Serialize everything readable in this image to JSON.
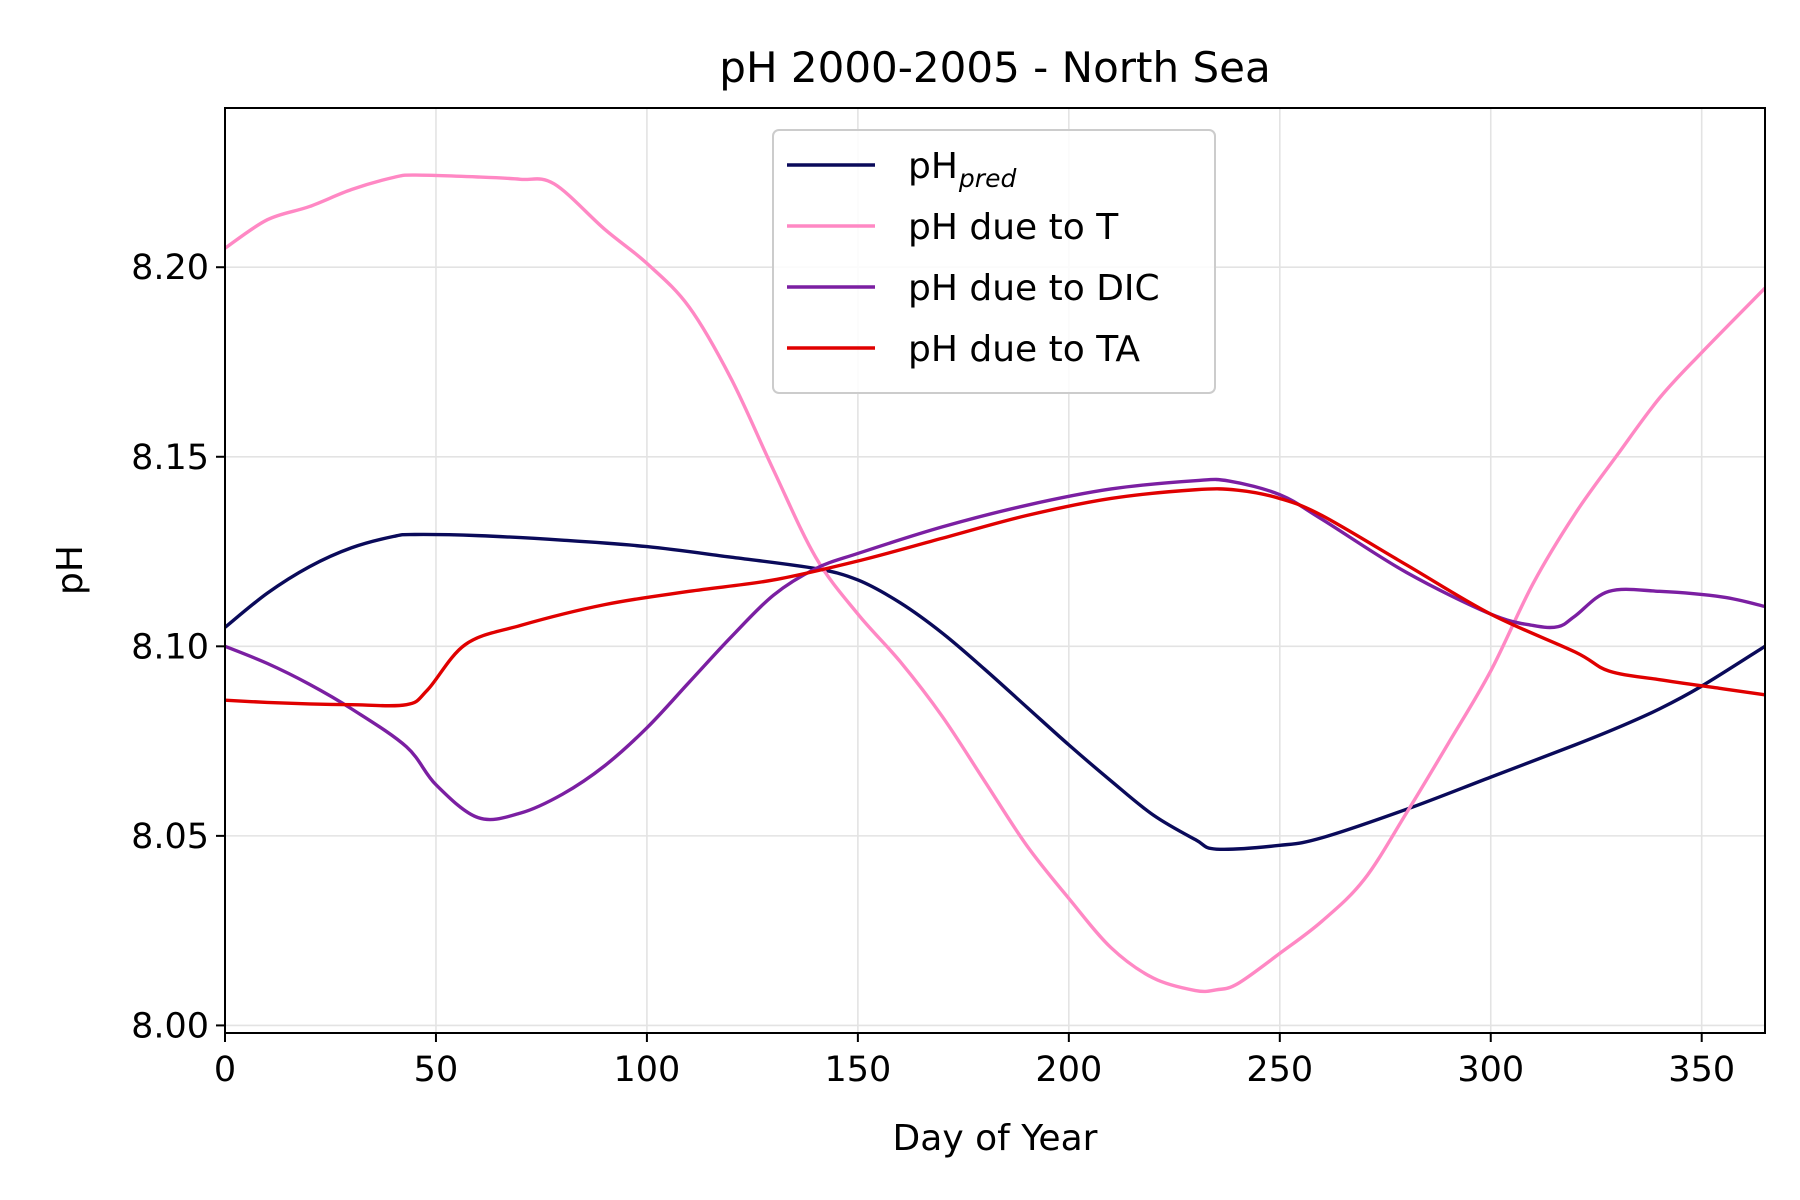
{
  "chart_data": {
    "type": "line",
    "title": "pH 2000-2005 - North Sea",
    "xlabel": "Day of Year",
    "ylabel": "pH",
    "xlim": [
      0,
      365
    ],
    "ylim": [
      7.998,
      8.242
    ],
    "xticks": [
      0,
      50,
      100,
      150,
      200,
      250,
      300,
      350
    ],
    "xtick_labels": [
      "0",
      "50",
      "100",
      "150",
      "200",
      "250",
      "300",
      "350"
    ],
    "yticks": [
      8.0,
      8.05,
      8.1,
      8.15,
      8.2
    ],
    "ytick_labels": [
      "8.00",
      "8.05",
      "8.10",
      "8.15",
      "8.20"
    ],
    "grid": true,
    "legend_position": "top-center",
    "series": [
      {
        "name": "pH",
        "name_subscript": "pred",
        "color": "#0a0a5a",
        "x": [
          0,
          10,
          20,
          30,
          40,
          45,
          60,
          80,
          100,
          120,
          140,
          150,
          160,
          170,
          180,
          190,
          200,
          210,
          220,
          230,
          235,
          250,
          260,
          280,
          300,
          320,
          330,
          340,
          350,
          365
        ],
        "y": [
          8.105,
          8.114,
          8.121,
          8.126,
          8.129,
          8.1295,
          8.1292,
          8.128,
          8.1263,
          8.1235,
          8.1205,
          8.1175,
          8.1115,
          8.1035,
          8.094,
          8.084,
          8.074,
          8.0645,
          8.0555,
          8.049,
          8.0465,
          8.0475,
          8.0495,
          8.057,
          8.0655,
          8.074,
          8.0785,
          8.0835,
          8.0895,
          8.1
        ]
      },
      {
        "name": "pH due to T",
        "color": "#ff88c4",
        "x": [
          0,
          10,
          20,
          30,
          40,
          45,
          60,
          70,
          78,
          90,
          100,
          110,
          120,
          130,
          140,
          150,
          160,
          170,
          180,
          190,
          200,
          210,
          220,
          230,
          235,
          240,
          250,
          260,
          270,
          280,
          290,
          300,
          310,
          320,
          330,
          340,
          350,
          365
        ],
        "y": [
          8.205,
          8.2125,
          8.216,
          8.2205,
          8.2237,
          8.2243,
          8.2238,
          8.2232,
          8.222,
          8.21,
          8.201,
          8.1895,
          8.1705,
          8.1465,
          8.1235,
          8.1085,
          8.096,
          8.0815,
          8.0645,
          8.0475,
          8.0335,
          8.0205,
          8.0125,
          8.0092,
          8.0094,
          8.011,
          8.019,
          8.0275,
          8.0385,
          8.056,
          8.0745,
          8.0935,
          8.1165,
          8.135,
          8.1505,
          8.1655,
          8.1775,
          8.1945
        ]
      },
      {
        "name": "pH due to DIC",
        "color": "#7b1fa2",
        "x": [
          0,
          10,
          20,
          30,
          43,
          50,
          60,
          70,
          80,
          90,
          100,
          110,
          120,
          130,
          140,
          150,
          170,
          190,
          210,
          230,
          238,
          250,
          260,
          280,
          300,
          310,
          316,
          320,
          328,
          340,
          355,
          365
        ],
        "y": [
          8.1,
          8.0955,
          8.09,
          8.0835,
          8.0735,
          8.0635,
          8.0548,
          8.056,
          8.061,
          8.0685,
          8.0785,
          8.0905,
          8.1025,
          8.1135,
          8.1205,
          8.1245,
          8.1315,
          8.1372,
          8.1415,
          8.1437,
          8.1436,
          8.14,
          8.1335,
          8.1195,
          8.1085,
          8.1055,
          8.1052,
          8.108,
          8.1145,
          8.1145,
          8.113,
          8.1105
        ]
      },
      {
        "name": "pH due to TA",
        "color": "#e00000",
        "x": [
          0,
          10,
          20,
          30,
          43,
          48,
          57,
          70,
          90,
          110,
          130,
          150,
          170,
          190,
          210,
          230,
          240,
          250,
          260,
          280,
          300,
          320,
          328,
          340,
          355,
          365
        ],
        "y": [
          8.0858,
          8.0852,
          8.0848,
          8.0846,
          8.0846,
          8.0885,
          8.1005,
          8.1055,
          8.111,
          8.1145,
          8.1175,
          8.1225,
          8.1285,
          8.1345,
          8.139,
          8.1413,
          8.1412,
          8.139,
          8.1345,
          8.1215,
          8.1085,
          8.0985,
          8.0935,
          8.0912,
          8.0888,
          8.0872
        ]
      }
    ]
  }
}
